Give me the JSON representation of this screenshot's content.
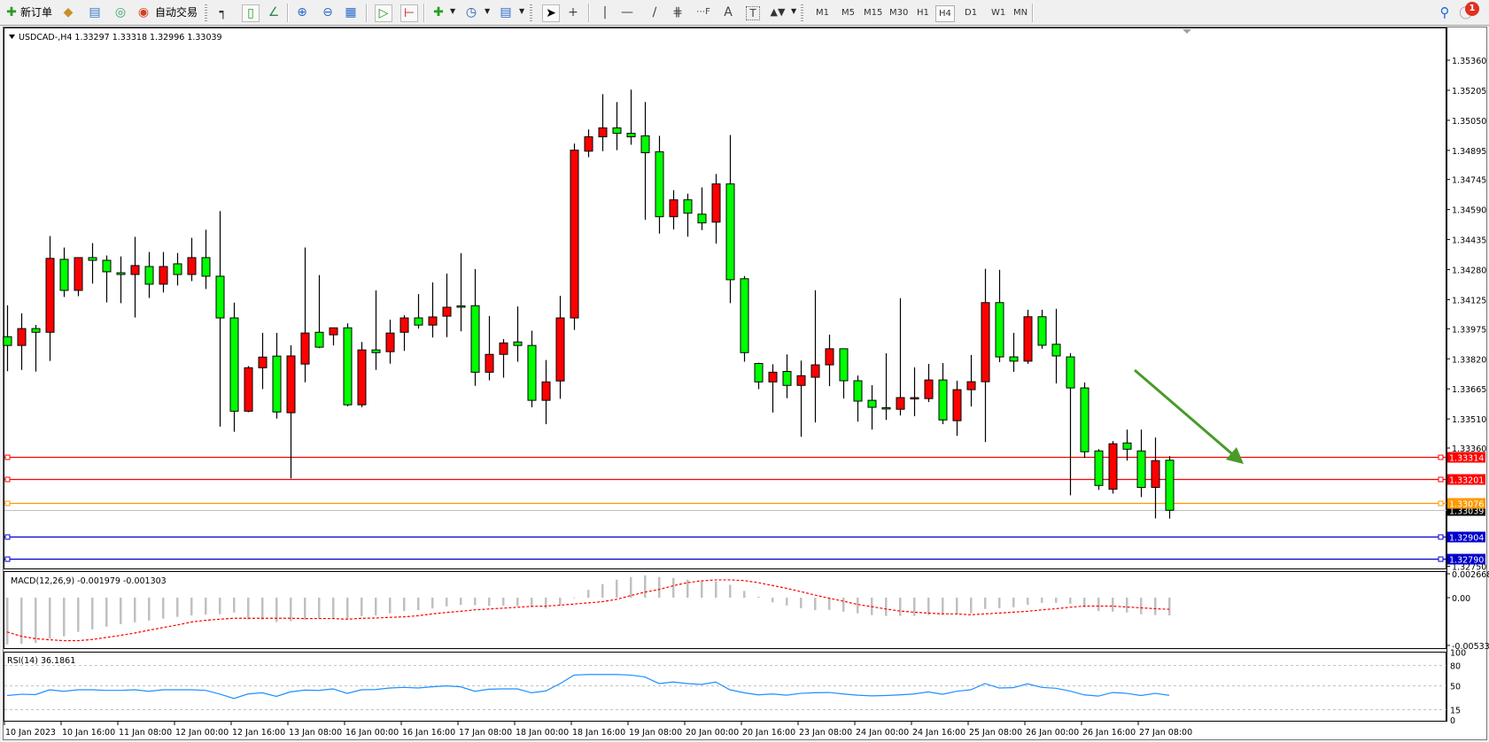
{
  "toolbar": {
    "new_order_label": "新订单",
    "auto_trading_label": "自动交易",
    "icons": [
      "new-order-icon",
      "market-watch-icon",
      "navigator-icon",
      "signals-icon",
      "auto-trading-icon",
      "bar-chart-icon",
      "candlestick-icon",
      "line-chart-icon",
      "zoom-in-icon",
      "zoom-out-icon",
      "tile-windows-icon",
      "auto-scroll-icon",
      "chart-shift-icon",
      "new-chart-icon",
      "periods-clock-icon",
      "indicators-icon",
      "cursor-icon",
      "crosshair-icon",
      "vertical-line-icon",
      "horizontal-line-icon",
      "trendline-icon",
      "equidistant-channel-icon",
      "fibonacci-icon",
      "text-icon",
      "text-label-icon",
      "arrows-icon",
      "search-icon",
      "notification-icon"
    ],
    "timeframes": [
      "M1",
      "M5",
      "M15",
      "M30",
      "H1",
      "H4",
      "D1",
      "W1",
      "MN"
    ],
    "active_timeframe": "H4",
    "notification_count": "1"
  },
  "chart_header": "USDCAD-,H4  1.33297 1.33318 1.32996 1.33039",
  "colors": {
    "bull_body": "#ff0000",
    "bear_body": "#00ff00",
    "outline": "#000000",
    "macd_hist": "#c0c0c0",
    "macd_signal": "#ff0000",
    "rsi_line": "#1e90ff",
    "arrow": "#4a9a2a"
  },
  "chart_data": {
    "type": "candlestick",
    "symbol": "USDCAD-",
    "timeframe": "H4",
    "price_axis_ticks": [
      "1.35360",
      "1.35205",
      "1.35050",
      "1.34895",
      "1.34745",
      "1.34590",
      "1.34435",
      "1.34280",
      "1.34125",
      "1.33975",
      "1.33820",
      "1.33665",
      "1.33510",
      "1.33360",
      "1.32750"
    ],
    "time_axis_labels": [
      "10 Jan 2023",
      "10 Jan 16:00",
      "11 Jan 08:00",
      "12 Jan 00:00",
      "12 Jan 16:00",
      "13 Jan 08:00",
      "16 Jan 00:00",
      "16 Jan 16:00",
      "17 Jan 08:00",
      "18 Jan 00:00",
      "18 Jan 16:00",
      "19 Jan 08:00",
      "20 Jan 00:00",
      "20 Jan 16:00",
      "23 Jan 08:00",
      "24 Jan 00:00",
      "24 Jan 16:00",
      "25 Jan 08:00",
      "26 Jan 00:00",
      "26 Jan 16:00",
      "27 Jan 08:00"
    ],
    "ohlc": [
      [
        1.33934,
        1.34096,
        1.33756,
        1.33889
      ],
      [
        1.33889,
        1.34055,
        1.33763,
        1.33976
      ],
      [
        1.33976,
        1.33995,
        1.33754,
        1.33957
      ],
      [
        1.33957,
        1.34453,
        1.33809,
        1.34338
      ],
      [
        1.34333,
        1.34394,
        1.34139,
        1.34173
      ],
      [
        1.34173,
        1.34342,
        1.34143,
        1.34342
      ],
      [
        1.34342,
        1.34417,
        1.34208,
        1.34328
      ],
      [
        1.34328,
        1.34353,
        1.34111,
        1.34269
      ],
      [
        1.34264,
        1.34348,
        1.34107,
        1.34255
      ],
      [
        1.34255,
        1.34449,
        1.34033,
        1.34301
      ],
      [
        1.34296,
        1.34371,
        1.34134,
        1.34205
      ],
      [
        1.34205,
        1.34371,
        1.34162,
        1.34296
      ],
      [
        1.3431,
        1.34366,
        1.34198,
        1.34255
      ],
      [
        1.34255,
        1.34444,
        1.34221,
        1.34342
      ],
      [
        1.34342,
        1.34486,
        1.3418,
        1.34246
      ],
      [
        1.34246,
        1.34582,
        1.3347,
        1.34031
      ],
      [
        1.34031,
        1.3411,
        1.33444,
        1.3355
      ],
      [
        1.3355,
        1.33783,
        1.33545,
        1.33774
      ],
      [
        1.33774,
        1.33954,
        1.33664,
        1.33829
      ],
      [
        1.33834,
        1.33954,
        1.33512,
        1.33546
      ],
      [
        1.33542,
        1.3389,
        1.33203,
        1.33835
      ],
      [
        1.33793,
        1.34394,
        1.33699,
        1.33953
      ],
      [
        1.33957,
        1.34252,
        1.33875,
        1.3388
      ],
      [
        1.33944,
        1.3398,
        1.33889,
        1.3398
      ],
      [
        1.3398,
        1.34003,
        1.33575,
        1.33583
      ],
      [
        1.33583,
        1.33907,
        1.3357,
        1.33866
      ],
      [
        1.33866,
        1.34173,
        1.33763,
        1.33852
      ],
      [
        1.33857,
        1.34022,
        1.33795,
        1.33953
      ],
      [
        1.33957,
        1.34045,
        1.33861,
        1.34031
      ],
      [
        1.34031,
        1.34154,
        1.33976,
        1.33994
      ],
      [
        1.33994,
        1.34214,
        1.3393,
        1.34036
      ],
      [
        1.3404,
        1.3426,
        1.33932,
        1.34086
      ],
      [
        1.34093,
        1.34365,
        1.33962,
        1.3409
      ],
      [
        1.34094,
        1.34283,
        1.33681,
        1.33751
      ],
      [
        1.33751,
        1.34041,
        1.33709,
        1.33843
      ],
      [
        1.33843,
        1.33922,
        1.33723,
        1.33902
      ],
      [
        1.33907,
        1.3409,
        1.33805,
        1.33889
      ],
      [
        1.33889,
        1.33965,
        1.3357,
        1.33606
      ],
      [
        1.33606,
        1.33814,
        1.33483,
        1.33701
      ],
      [
        1.33706,
        1.34145,
        1.33614,
        1.34031
      ],
      [
        1.34031,
        1.3493,
        1.33969,
        1.34896
      ],
      [
        1.34891,
        1.35003,
        1.3486,
        1.34965
      ],
      [
        1.34965,
        1.35185,
        1.34891,
        1.35011
      ],
      [
        1.35011,
        1.35144,
        1.34896,
        1.34983
      ],
      [
        1.34983,
        1.35208,
        1.34924,
        1.34965
      ],
      [
        1.3497,
        1.35144,
        1.34537,
        1.34883
      ],
      [
        1.34888,
        1.3497,
        1.34466,
        1.34553
      ],
      [
        1.34553,
        1.3469,
        1.34487,
        1.3464
      ],
      [
        1.3464,
        1.34672,
        1.3445,
        1.34571
      ],
      [
        1.34566,
        1.34704,
        1.34484,
        1.34521
      ],
      [
        1.34525,
        1.34773,
        1.34414,
        1.34722
      ],
      [
        1.34722,
        1.34974,
        1.34107,
        1.34228
      ],
      [
        1.34233,
        1.34247,
        1.33805,
        1.33852
      ],
      [
        1.33796,
        1.338,
        1.33664,
        1.33701
      ],
      [
        1.33701,
        1.33792,
        1.33543,
        1.33751
      ],
      [
        1.33755,
        1.33843,
        1.33617,
        1.33683
      ],
      [
        1.33683,
        1.33811,
        1.33418,
        1.33733
      ],
      [
        1.33725,
        1.34174,
        1.33492,
        1.33789
      ],
      [
        1.33789,
        1.33945,
        1.33679,
        1.33872
      ],
      [
        1.33872,
        1.33872,
        1.33615,
        1.33707
      ],
      [
        1.33707,
        1.33734,
        1.33496,
        1.33602
      ],
      [
        1.33606,
        1.33684,
        1.33455,
        1.3357
      ],
      [
        1.33568,
        1.33849,
        1.33505,
        1.33565
      ],
      [
        1.3356,
        1.34133,
        1.33528,
        1.3362
      ],
      [
        1.3362,
        1.33776,
        1.33524,
        1.3362
      ],
      [
        1.33615,
        1.33794,
        1.33597,
        1.33711
      ],
      [
        1.33711,
        1.33798,
        1.33483,
        1.33505
      ],
      [
        1.33501,
        1.33707,
        1.33423,
        1.33661
      ],
      [
        1.33661,
        1.3384,
        1.33574,
        1.33702
      ],
      [
        1.33702,
        1.34284,
        1.33391,
        1.3411
      ],
      [
        1.3411,
        1.34279,
        1.33803,
        1.3383
      ],
      [
        1.3383,
        1.33954,
        1.33753,
        1.33808
      ],
      [
        1.33808,
        1.34073,
        1.33794,
        1.34037
      ],
      [
        1.34037,
        1.34073,
        1.33872,
        1.3389
      ],
      [
        1.33895,
        1.34078,
        1.33693,
        1.33835
      ],
      [
        1.3383,
        1.33849,
        1.33116,
        1.3367
      ],
      [
        1.3367,
        1.33698,
        1.33309,
        1.33341
      ],
      [
        1.33345,
        1.33354,
        1.33144,
        1.33167
      ],
      [
        1.33148,
        1.33396,
        1.33125,
        1.33382
      ],
      [
        1.33386,
        1.33455,
        1.33295,
        1.33354
      ],
      [
        1.33345,
        1.33455,
        1.33107,
        1.33157
      ],
      [
        1.33157,
        1.33414,
        1.32997,
        1.33295
      ],
      [
        1.33297,
        1.33318,
        1.32996,
        1.33039
      ]
    ],
    "horizontal_lines": [
      {
        "price": "1.33314",
        "color": "#ff0000"
      },
      {
        "price": "1.33201",
        "color": "#ff0000"
      },
      {
        "price": "1.33076",
        "color": "#ff9900"
      },
      {
        "price": "1.32904",
        "color": "#0000cc"
      },
      {
        "price": "1.32790",
        "color": "#0000cc"
      }
    ],
    "bid_line": {
      "price": "1.33039",
      "color": "#c0c0c0",
      "label_bg": "#000000"
    },
    "macd": {
      "label": "MACD(12,26,9) -0.001979 -0.001303",
      "axis_ticks": [
        "0.002668",
        "0.00",
        "-0.00533"
      ],
      "histogram": [
        -0.00522,
        -0.00515,
        -0.00505,
        -0.00457,
        -0.00431,
        -0.00382,
        -0.00353,
        -0.00324,
        -0.00295,
        -0.00275,
        -0.00256,
        -0.00233,
        -0.00214,
        -0.00198,
        -0.00188,
        -0.00185,
        -0.00165,
        -0.00243,
        -0.00246,
        -0.00272,
        -0.00262,
        -0.00246,
        -0.00233,
        -0.00237,
        -0.00237,
        -0.00207,
        -0.00198,
        -0.00175,
        -0.00149,
        -0.00139,
        -0.0012,
        -0.00097,
        -0.00081,
        -0.00084,
        -0.00091,
        -0.00087,
        -0.00094,
        -0.00107,
        -0.0012,
        -0.00084,
        3e-05,
        0.00087,
        0.00152,
        0.00201,
        0.0023,
        0.00249,
        0.0023,
        0.0022,
        0.00201,
        0.00181,
        0.00181,
        0.00143,
        0.00075,
        0.0001,
        -0.00052,
        -0.00087,
        -0.00117,
        -0.00139,
        -0.00136,
        -0.00156,
        -0.00175,
        -0.00194,
        -0.00204,
        -0.00204,
        -0.00204,
        -0.00194,
        -0.00191,
        -0.00181,
        -0.00175,
        -0.00126,
        -0.00117,
        -0.00107,
        -0.00078,
        -0.00058,
        -0.00058,
        -0.00068,
        -0.00107,
        -0.00149,
        -0.00156,
        -0.00165,
        -0.00185,
        -0.00194,
        -0.00198
      ],
      "signal": [
        -0.00382,
        -0.00431,
        -0.00457,
        -0.0047,
        -0.0048,
        -0.0048,
        -0.00467,
        -0.00444,
        -0.00421,
        -0.00395,
        -0.00363,
        -0.00334,
        -0.00305,
        -0.00272,
        -0.00253,
        -0.0024,
        -0.0023,
        -0.0023,
        -0.0023,
        -0.0023,
        -0.0023,
        -0.00233,
        -0.00233,
        -0.00233,
        -0.0024,
        -0.0023,
        -0.00227,
        -0.0022,
        -0.00214,
        -0.00201,
        -0.00181,
        -0.00165,
        -0.00152,
        -0.00136,
        -0.00126,
        -0.00117,
        -0.00107,
        -0.00097,
        -0.00094,
        -0.00084,
        -0.00071,
        -0.00058,
        -0.00045,
        -0.00019,
        0.00023,
        0.00062,
        0.00091,
        0.00133,
        0.00168,
        0.00188,
        0.00198,
        0.00198,
        0.00191,
        0.00168,
        0.00136,
        0.00104,
        0.00068,
        0.00029,
        -6e-05,
        -0.00039,
        -0.00075,
        -0.001,
        -0.00126,
        -0.00149,
        -0.00162,
        -0.00172,
        -0.00181,
        -0.00181,
        -0.00191,
        -0.00181,
        -0.00172,
        -0.00162,
        -0.00152,
        -0.00136,
        -0.00123,
        -0.00107,
        -0.00094,
        -0.00094,
        -0.00094,
        -0.00104,
        -0.00113,
        -0.00123,
        -0.0013
      ]
    },
    "rsi": {
      "label": "RSI(14) 36.1861",
      "axis_ticks": [
        "100",
        "80",
        "50",
        "15",
        "0"
      ],
      "levels": [
        80,
        50,
        15
      ],
      "values": [
        35.9,
        37.7,
        37.2,
        44.3,
        42.1,
        44.3,
        44.3,
        43.4,
        43.4,
        44.3,
        42.1,
        44.3,
        44.3,
        44.3,
        43.4,
        38.1,
        31.5,
        38.1,
        39.9,
        34.6,
        41.2,
        43.8,
        43.4,
        45.6,
        39.0,
        44.3,
        44.7,
        46.9,
        47.8,
        46.9,
        48.7,
        50.0,
        48.7,
        42.1,
        45.1,
        45.6,
        45.6,
        39.9,
        42.5,
        53.1,
        65.9,
        66.8,
        66.8,
        66.8,
        65.9,
        63.2,
        53.5,
        55.7,
        53.5,
        52.2,
        55.7,
        44.3,
        39.9,
        36.8,
        38.1,
        36.3,
        39.0,
        39.9,
        40.3,
        38.1,
        36.3,
        35.4,
        35.9,
        36.8,
        38.1,
        41.2,
        37.7,
        42.1,
        44.3,
        53.5,
        46.9,
        47.4,
        53.1,
        47.8,
        46.5,
        42.5,
        36.8,
        35.0,
        40.3,
        39.0,
        35.9,
        39.0,
        36.19
      ]
    }
  }
}
